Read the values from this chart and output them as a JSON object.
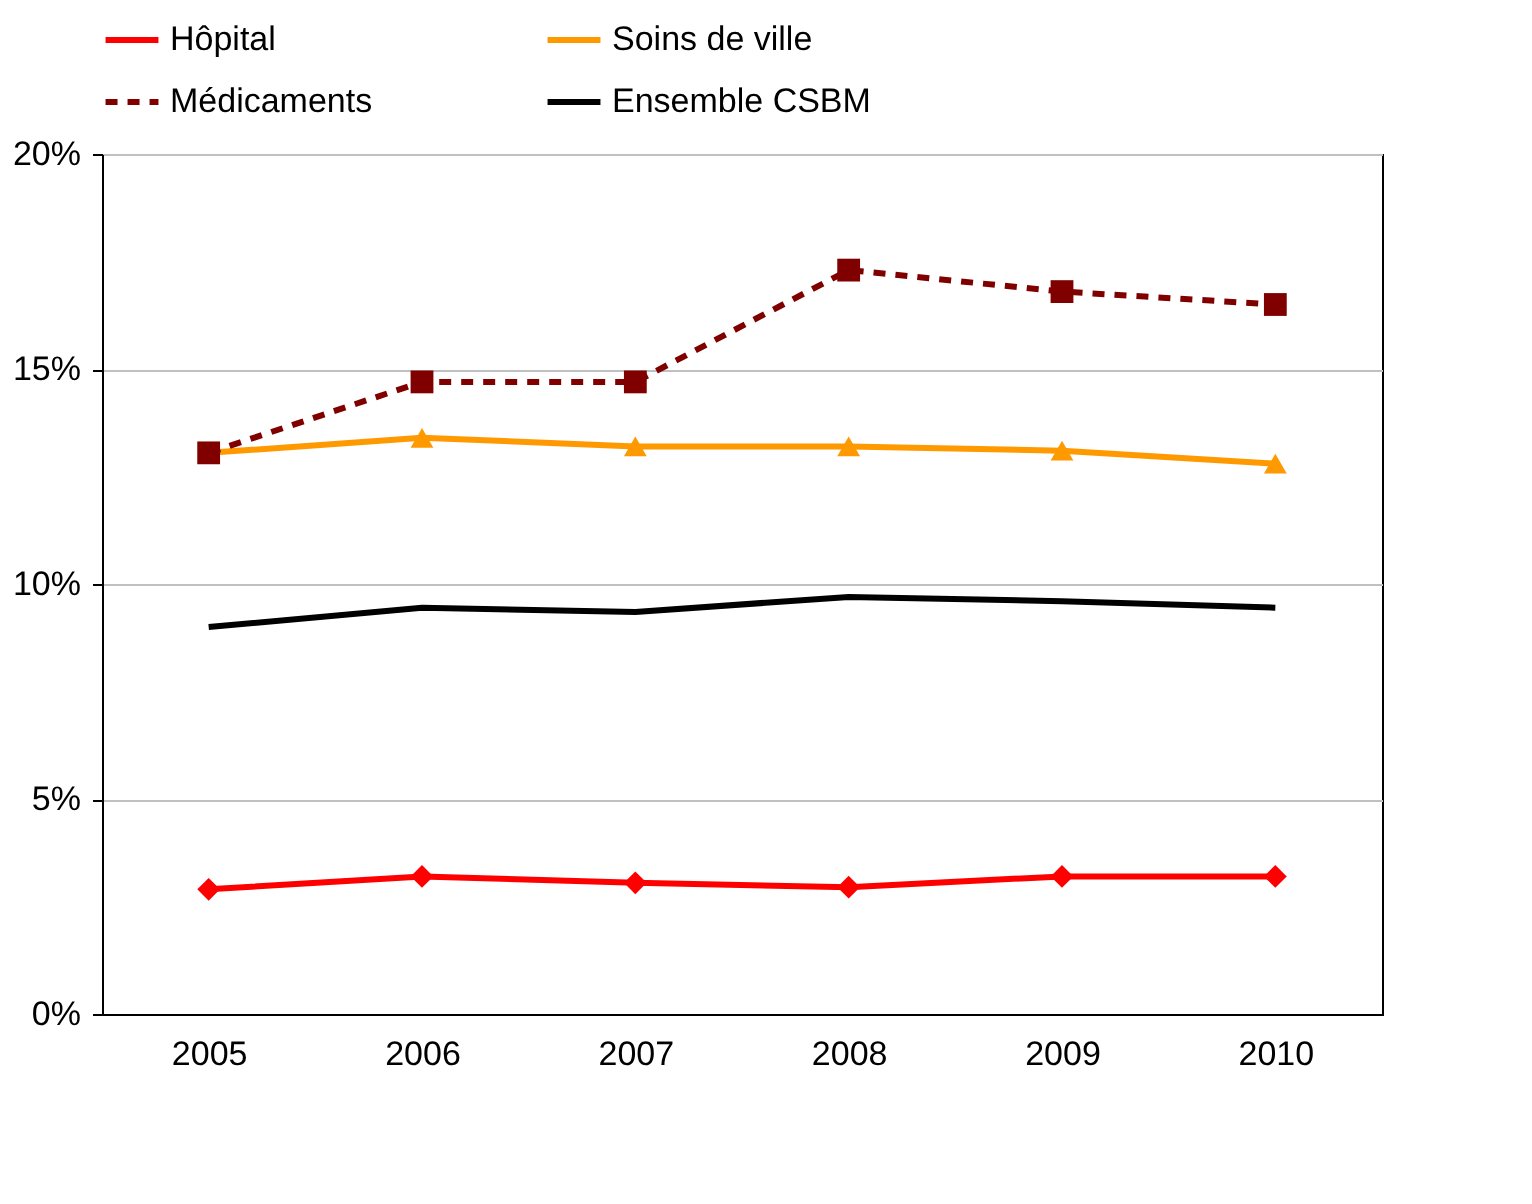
{
  "chart_data": {
    "type": "line",
    "categories": [
      "2005",
      "2006",
      "2007",
      "2008",
      "2009",
      "2010"
    ],
    "series": [
      {
        "name": "Hôpital",
        "color": "#ff0000",
        "marker": "diamond",
        "line_style": "solid",
        "values": [
          2.9,
          3.2,
          3.05,
          2.95,
          3.2,
          3.2
        ]
      },
      {
        "name": "Soins de ville",
        "color": "#ff9900",
        "marker": "triangle",
        "line_style": "solid",
        "values": [
          13.05,
          13.4,
          13.2,
          13.2,
          13.1,
          12.8
        ]
      },
      {
        "name": "Médicaments",
        "color": "#800000",
        "marker": "square",
        "line_style": "dashed",
        "values": [
          13.05,
          14.7,
          14.7,
          17.3,
          16.8,
          16.5
        ]
      },
      {
        "name": "Ensemble CSBM",
        "color": "#000000",
        "marker": "none",
        "line_style": "solid",
        "values": [
          9.0,
          9.45,
          9.35,
          9.7,
          9.6,
          9.45
        ]
      }
    ],
    "ylim": [
      0,
      20
    ],
    "yticks": [
      {
        "value": 0,
        "label": "0%"
      },
      {
        "value": 5,
        "label": "5%"
      },
      {
        "value": 10,
        "label": "10%"
      },
      {
        "value": 15,
        "label": "15%"
      },
      {
        "value": 20,
        "label": "20%"
      }
    ],
    "grid": "y",
    "legend": "top"
  }
}
